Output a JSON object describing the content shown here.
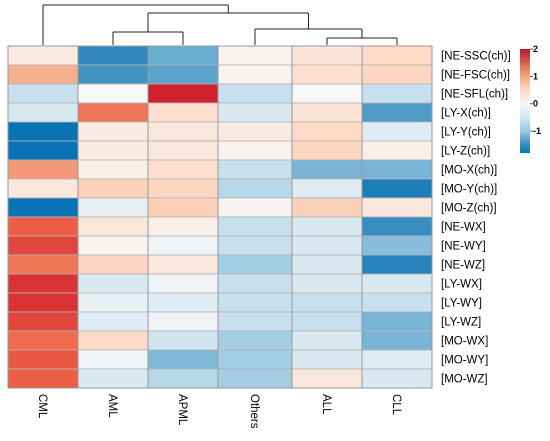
{
  "chart_data": {
    "type": "heatmap",
    "columns": [
      "CML",
      "AML",
      "APML",
      "Others",
      "ALL",
      "CLL"
    ],
    "rows": [
      "[NE-SSC(ch)]",
      "[NE-FSC(ch)]",
      "[NE-SFL(ch)]",
      "[LY-X(ch)]",
      "[LY-Y(ch)]",
      "[LY-Z(ch)]",
      "[MO-X(ch)]",
      "[MO-Y(ch)]",
      "[MO-Z(ch)]",
      "[NE-WX]",
      "[NE-WY]",
      "[NE-WZ]",
      "[LY-WX]",
      "[LY-WY]",
      "[LY-WZ]",
      "[MO-WX]",
      "[MO-WY]",
      "[MO-WZ]"
    ],
    "values": [
      [
        0.15,
        -1.4,
        -0.9,
        0.05,
        0.25,
        0.35
      ],
      [
        0.8,
        -1.2,
        -1.0,
        0.05,
        0.3,
        0.4
      ],
      [
        -0.3,
        0.0,
        2.0,
        -0.3,
        0.0,
        -0.3
      ],
      [
        -0.2,
        1.3,
        0.3,
        -0.2,
        0.25,
        -1.1
      ],
      [
        -1.8,
        0.15,
        0.2,
        0.15,
        0.35,
        -0.15
      ],
      [
        -1.8,
        0.15,
        0.2,
        0.05,
        0.4,
        0.1
      ],
      [
        1.0,
        0.1,
        0.3,
        -0.3,
        -0.8,
        -0.8
      ],
      [
        0.2,
        0.45,
        0.4,
        -0.4,
        -0.15,
        -1.6
      ],
      [
        -1.8,
        -0.1,
        0.45,
        0.05,
        0.45,
        0.2
      ],
      [
        1.5,
        0.2,
        0.1,
        -0.3,
        -0.2,
        -1.3
      ],
      [
        1.7,
        0.05,
        -0.05,
        -0.3,
        -0.2,
        -0.7
      ],
      [
        1.3,
        0.4,
        0.2,
        -0.5,
        -0.2,
        -1.5
      ],
      [
        1.85,
        -0.2,
        -0.05,
        -0.3,
        -0.2,
        -0.2
      ],
      [
        1.85,
        -0.1,
        -0.15,
        -0.3,
        -0.3,
        -0.3
      ],
      [
        1.7,
        -0.15,
        -0.05,
        -0.3,
        -0.3,
        -0.8
      ],
      [
        1.4,
        0.35,
        -0.25,
        -0.5,
        -0.2,
        -0.8
      ],
      [
        1.55,
        -0.05,
        -0.75,
        -0.5,
        -0.2,
        -0.15
      ],
      [
        1.5,
        -0.2,
        -0.4,
        -0.5,
        0.2,
        -0.2
      ]
    ],
    "colorscale": {
      "min": -1.8,
      "max": 2.0,
      "ticks": [
        2,
        1,
        0,
        -1
      ],
      "tick_labels": [
        "2",
        "1",
        "0",
        "-1"
      ],
      "low_color": "#0a73b5",
      "mid_color": "#f7f7f7",
      "high_color": "#d1202e"
    },
    "column_dendrogram": true,
    "legend_placement": "top-right",
    "title": "",
    "xlabel": "",
    "ylabel": ""
  }
}
